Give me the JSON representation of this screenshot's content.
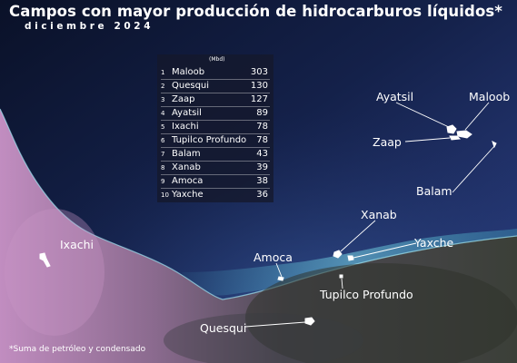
{
  "title": "Campos con mayor producción de hidrocarburos líquidos*",
  "subtitle": "diciembre 2024",
  "table": {
    "unit": "(Mbd)",
    "rows": [
      {
        "rank": "1",
        "name": "Maloob",
        "value": "303"
      },
      {
        "rank": "2",
        "name": "Quesqui",
        "value": "130"
      },
      {
        "rank": "3",
        "name": "Zaap",
        "value": "127"
      },
      {
        "rank": "4",
        "name": "Ayatsil",
        "value": "89"
      },
      {
        "rank": "5",
        "name": "Ixachi",
        "value": "78"
      },
      {
        "rank": "6",
        "name": "Tupilco Profundo",
        "value": "78"
      },
      {
        "rank": "7",
        "name": "Balam",
        "value": "43"
      },
      {
        "rank": "8",
        "name": "Xanab",
        "value": "39"
      },
      {
        "rank": "9",
        "name": "Amoca",
        "value": "38"
      },
      {
        "rank": "10",
        "name": "Yaxche",
        "value": "36"
      }
    ]
  },
  "map_labels": {
    "ayatsil": "Ayatsil",
    "maloob": "Maloob",
    "zaap": "Zaap",
    "balam": "Balam",
    "xanab": "Xanab",
    "yaxche": "Yaxche",
    "amoca": "Amoca",
    "ixachi": "Ixachi",
    "tupilco": "Tupilco Profundo",
    "quesqui": "Quesqui"
  },
  "footnote": "*Suma de petróleo y condensado",
  "colors": {
    "sea_deep": "#0d1330",
    "sea_light": "#2a3b78",
    "coast_glow": "#5fd6e8",
    "land_pink": "#b87fb6",
    "land_dark": "#3a3a36",
    "text": "#ffffff"
  }
}
